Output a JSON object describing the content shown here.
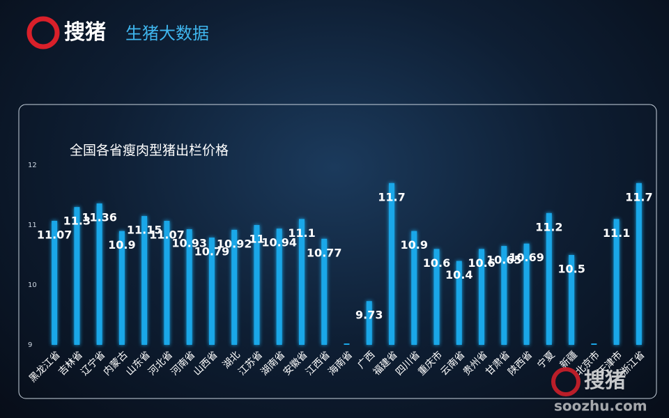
{
  "header": {
    "logo": "搜猪",
    "subtitle": "生猪大数据"
  },
  "watermark": {
    "logo": "搜猪",
    "url": "soozhu.com"
  },
  "chart_data": {
    "type": "bar",
    "title": "全国各省瘦肉型猪出栏价格",
    "categories": [
      "黑龙江省",
      "吉林省",
      "辽宁省",
      "内蒙古",
      "山东省",
      "河北省",
      "河南省",
      "山西省",
      "湖北",
      "江苏省",
      "湖南省",
      "安徽省",
      "江西省",
      "海南省",
      "广西",
      "福建省",
      "四川省",
      "重庆市",
      "云南省",
      "贵州省",
      "甘肃省",
      "陕西省",
      "宁夏",
      "新疆",
      "北京市",
      "天津市",
      "浙江省"
    ],
    "values": [
      11.07,
      11.3,
      11.36,
      10.9,
      11.15,
      11.07,
      10.93,
      10.79,
      10.92,
      11,
      10.94,
      11.1,
      10.77,
      null,
      9.73,
      11.7,
      10.9,
      10.6,
      10.4,
      10.6,
      10.65,
      10.69,
      11.2,
      10.5,
      null,
      11.1,
      11.7
    ],
    "color": "#1aa7e8",
    "ylim": [
      9,
      12
    ],
    "yticks": [
      9,
      10,
      11,
      12
    ],
    "grid": false
  }
}
